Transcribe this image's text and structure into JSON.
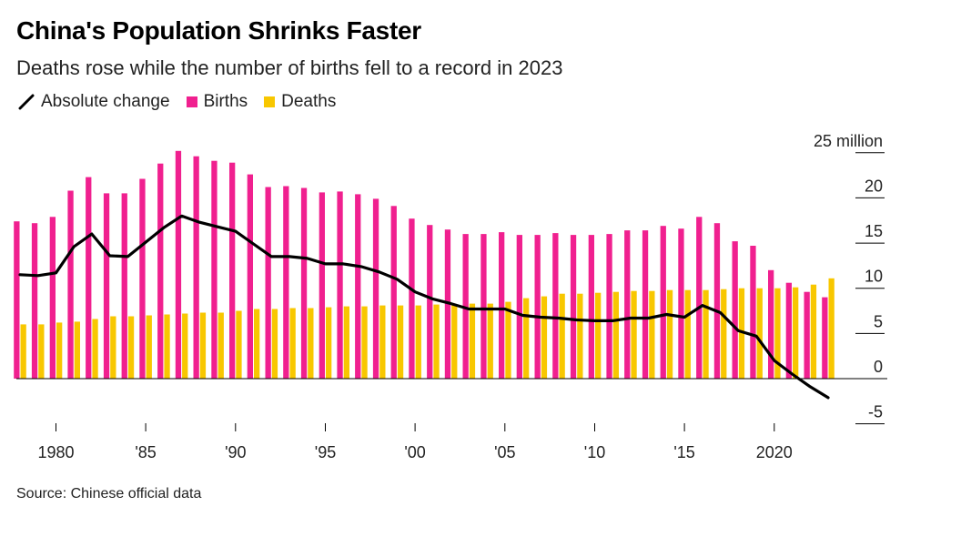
{
  "chart_data": {
    "type": "bar",
    "title": "China's Population Shrinks Faster",
    "subtitle": "Deaths rose while the number of births fell to a record in 2023",
    "source": "Source: Chinese official data",
    "unit_label": "25 million",
    "xlabel": "",
    "ylabel": "",
    "ylim": [
      -5,
      25
    ],
    "yticks": [
      -5,
      0,
      5,
      10,
      15,
      20,
      25
    ],
    "ytick_labels": [
      "-5",
      "0",
      "5",
      "10",
      "15",
      "20",
      "25 million"
    ],
    "xticks": [
      1980,
      1985,
      1990,
      1995,
      2000,
      2005,
      2010,
      2015,
      2020
    ],
    "xtick_labels": [
      "1980",
      "'85",
      "'90",
      "'95",
      "'00",
      "'05",
      "'10",
      "'15",
      "2020"
    ],
    "grid": false,
    "legend_position": "top-left",
    "x": [
      1978,
      1979,
      1980,
      1981,
      1982,
      1983,
      1984,
      1985,
      1986,
      1987,
      1988,
      1989,
      1990,
      1991,
      1992,
      1993,
      1994,
      1995,
      1996,
      1997,
      1998,
      1999,
      2000,
      2001,
      2002,
      2003,
      2004,
      2005,
      2006,
      2007,
      2008,
      2009,
      2010,
      2011,
      2012,
      2013,
      2014,
      2015,
      2016,
      2017,
      2018,
      2019,
      2020,
      2021,
      2022,
      2023
    ],
    "series": [
      {
        "name": "Births",
        "type": "bar",
        "color": "#f0208f",
        "values": [
          17.4,
          17.2,
          17.9,
          20.8,
          22.3,
          20.5,
          20.5,
          22.1,
          23.8,
          25.2,
          24.6,
          24.1,
          23.9,
          22.6,
          21.2,
          21.3,
          21.1,
          20.6,
          20.7,
          20.4,
          19.9,
          19.1,
          17.7,
          17.0,
          16.5,
          16.0,
          16.0,
          16.2,
          15.9,
          15.9,
          16.1,
          15.9,
          15.9,
          16.0,
          16.4,
          16.4,
          16.9,
          16.6,
          17.9,
          17.2,
          15.2,
          14.7,
          12.0,
          10.6,
          9.6,
          9.0
        ]
      },
      {
        "name": "Deaths",
        "type": "bar",
        "color": "#f8c700",
        "values": [
          6.0,
          6.0,
          6.2,
          6.3,
          6.6,
          6.9,
          6.9,
          7.0,
          7.1,
          7.2,
          7.3,
          7.3,
          7.5,
          7.7,
          7.7,
          7.8,
          7.8,
          7.9,
          8.0,
          8.0,
          8.1,
          8.1,
          8.1,
          8.2,
          8.2,
          8.3,
          8.3,
          8.5,
          8.9,
          9.1,
          9.4,
          9.4,
          9.5,
          9.6,
          9.7,
          9.7,
          9.8,
          9.8,
          9.8,
          9.9,
          10.0,
          10.0,
          10.0,
          10.1,
          10.4,
          11.1
        ]
      },
      {
        "name": "Absolute change",
        "type": "line",
        "color": "#000000",
        "values": [
          11.5,
          11.4,
          11.7,
          14.6,
          16.0,
          13.6,
          13.5,
          15.1,
          16.7,
          18.0,
          17.3,
          16.8,
          16.3,
          14.9,
          13.5,
          13.5,
          13.3,
          12.7,
          12.7,
          12.4,
          11.8,
          11.0,
          9.6,
          8.8,
          8.3,
          7.7,
          7.7,
          7.7,
          7.0,
          6.8,
          6.7,
          6.5,
          6.4,
          6.4,
          6.7,
          6.7,
          7.1,
          6.8,
          8.1,
          7.3,
          5.3,
          4.7,
          2.0,
          0.5,
          -0.9,
          -2.1
        ]
      }
    ]
  },
  "legend": {
    "line_label": "Absolute change",
    "births_label": "Births",
    "deaths_label": "Deaths"
  }
}
